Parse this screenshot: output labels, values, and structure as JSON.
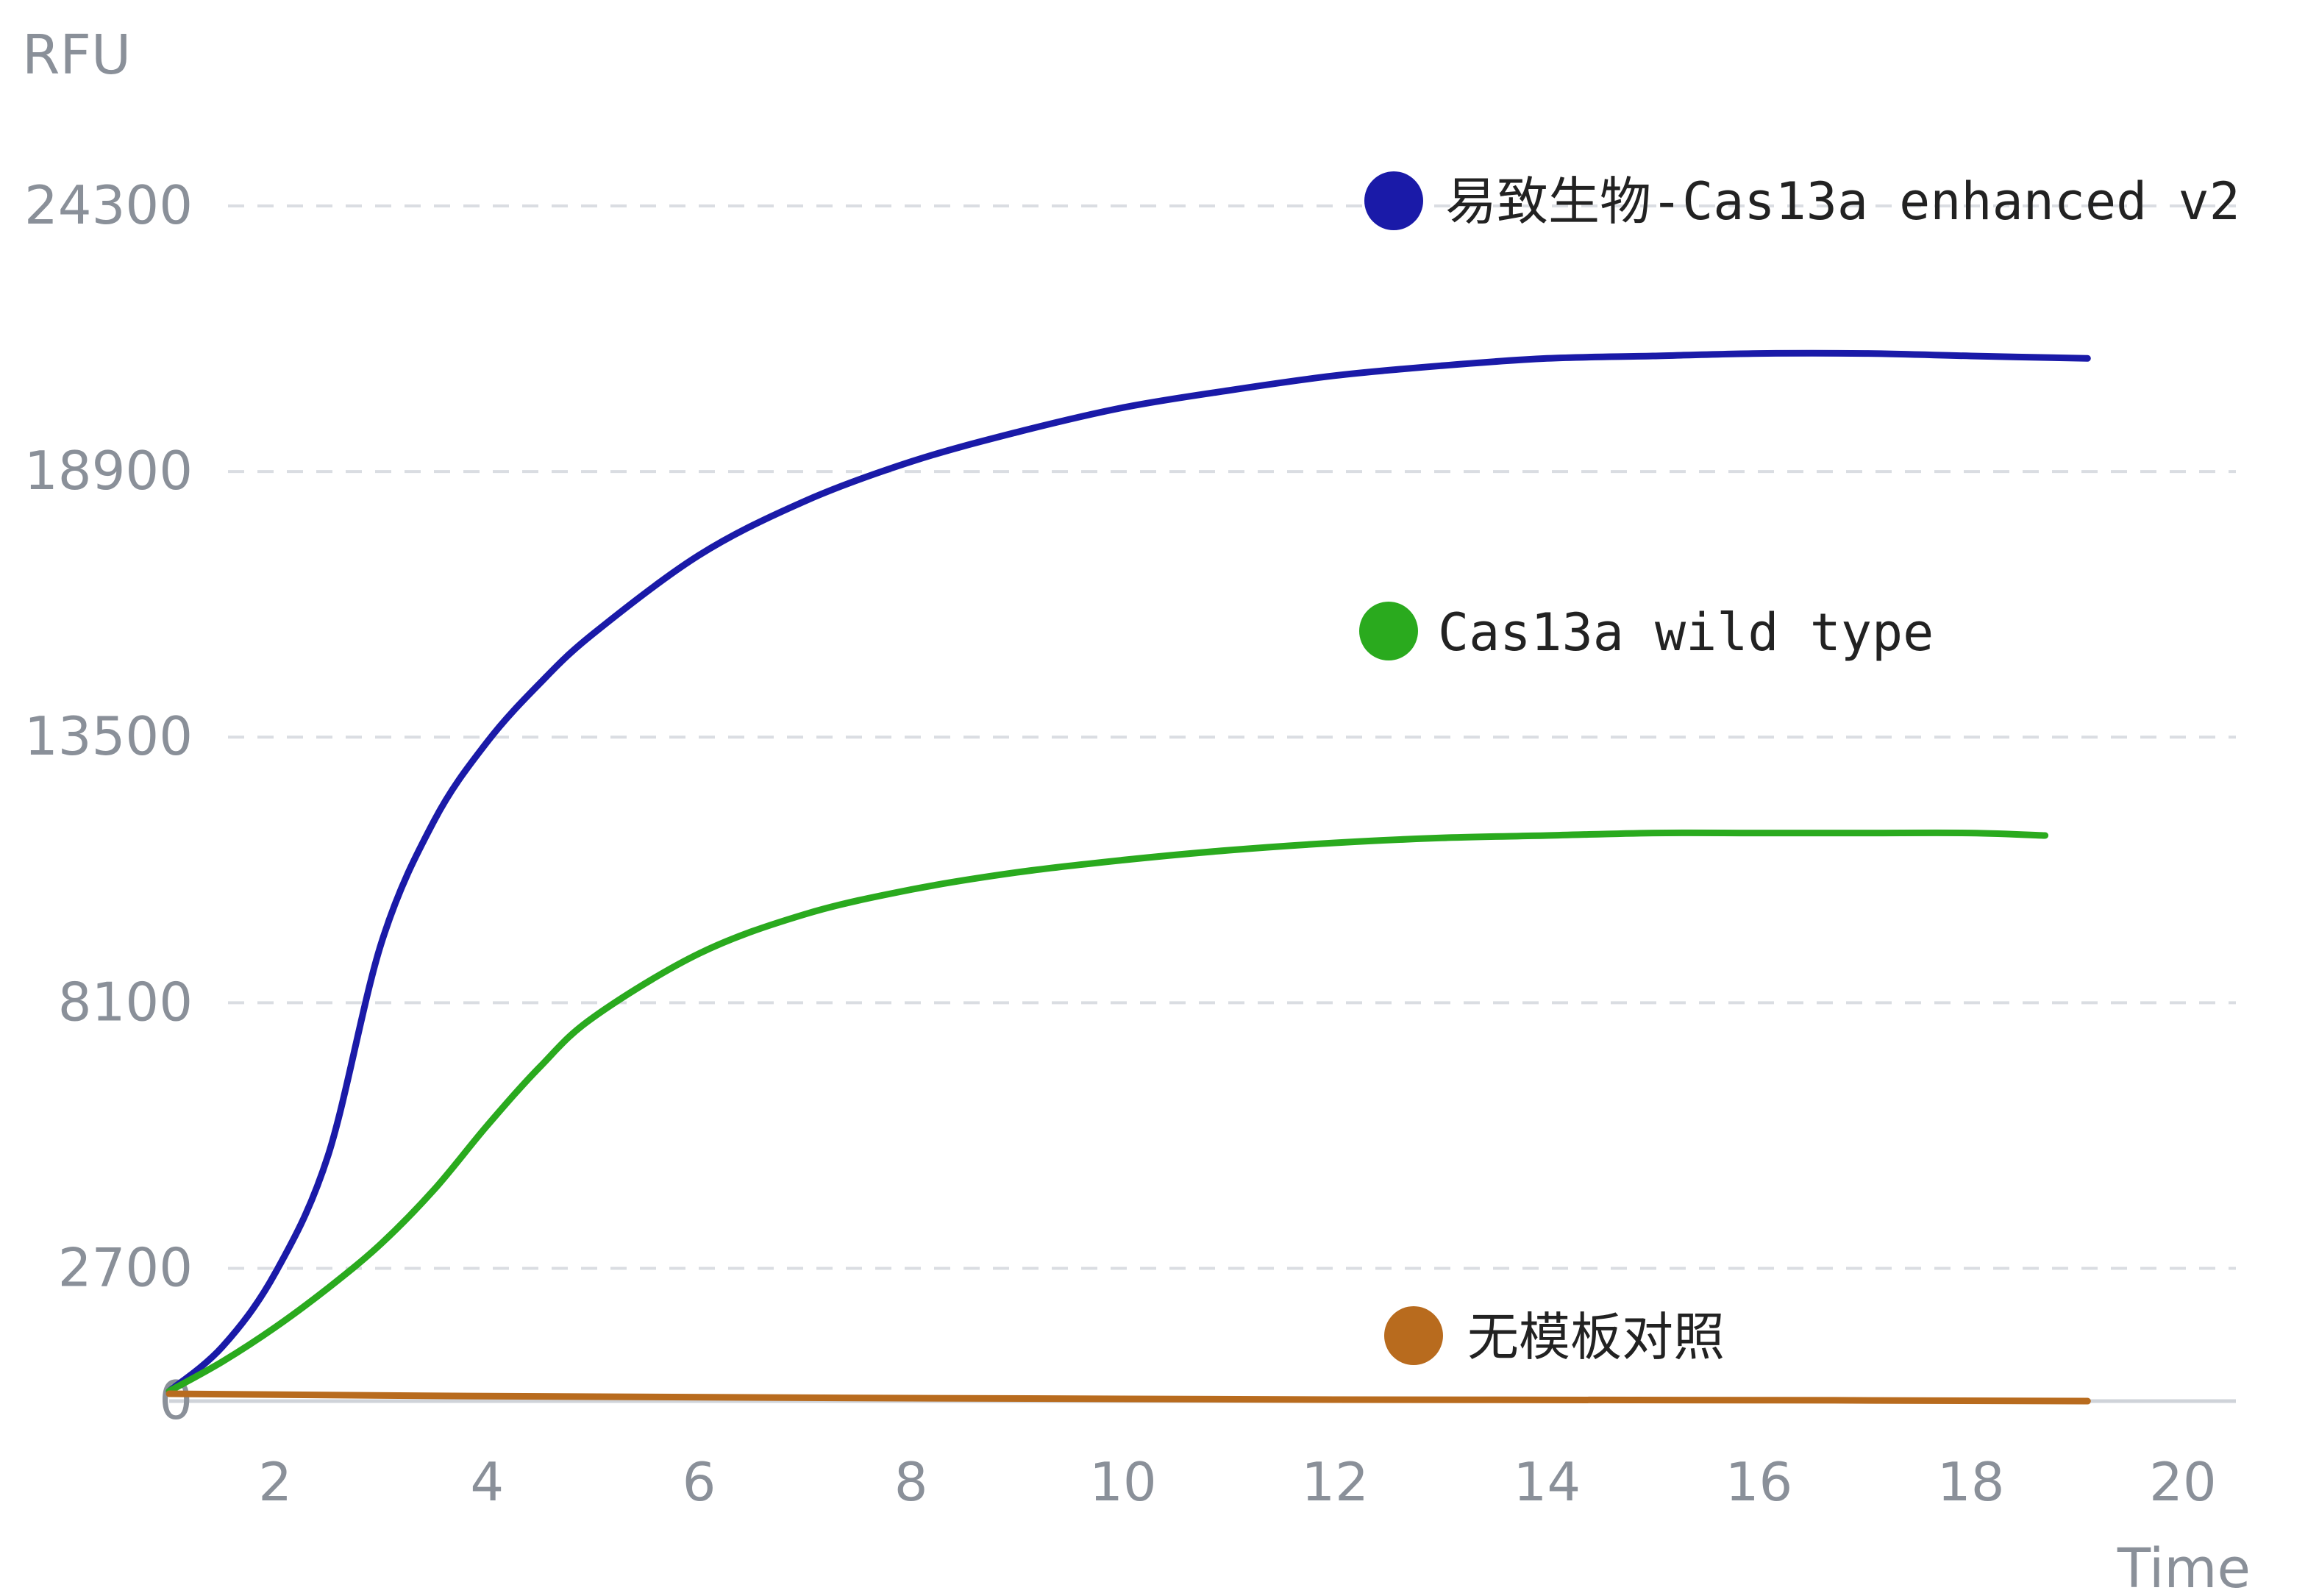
{
  "chart_data": {
    "type": "line",
    "title": "",
    "ylabel": "RFU",
    "xlabel": "Time",
    "xlim": [
      1,
      20.5
    ],
    "ylim": [
      0,
      24300
    ],
    "x_ticks": [
      2,
      4,
      6,
      8,
      10,
      12,
      14,
      16,
      18,
      20
    ],
    "y_ticks": [
      0,
      2700,
      8100,
      13500,
      18900,
      24300
    ],
    "grid": true,
    "legend": "inline",
    "series": [
      {
        "name": "易致生物-Cas13a enhanced v2",
        "color": "#1a1aa8",
        "x": [
          1,
          1.5,
          2,
          2.5,
          3,
          3.5,
          4,
          4.5,
          5,
          6,
          7,
          8,
          9,
          10,
          11,
          12,
          13,
          14,
          15,
          16,
          17,
          18,
          19.1
        ],
        "y": [
          200,
          1100,
          2600,
          5000,
          9300,
          11800,
          13400,
          14600,
          15600,
          17200,
          18300,
          19100,
          19700,
          20200,
          20550,
          20850,
          21050,
          21200,
          21250,
          21300,
          21300,
          21250,
          21200
        ]
      },
      {
        "name": "Cas13a wild type",
        "color": "#2aaa1e",
        "x": [
          1,
          1.5,
          2,
          2.5,
          3,
          3.5,
          4,
          4.5,
          5,
          6,
          7,
          8,
          9,
          10,
          11,
          12,
          13,
          14,
          15,
          16,
          17,
          18,
          18.7
        ],
        "y": [
          200,
          800,
          1500,
          2300,
          3200,
          4300,
          5600,
          6800,
          7800,
          9100,
          9900,
          10400,
          10750,
          11000,
          11200,
          11350,
          11450,
          11500,
          11550,
          11550,
          11550,
          11550,
          11500
        ]
      },
      {
        "name": "无模板对照",
        "color": "#b86b1e",
        "x": [
          1,
          4,
          8,
          12,
          16,
          19.1
        ],
        "y": [
          150,
          100,
          60,
          30,
          20,
          0
        ]
      }
    ]
  }
}
